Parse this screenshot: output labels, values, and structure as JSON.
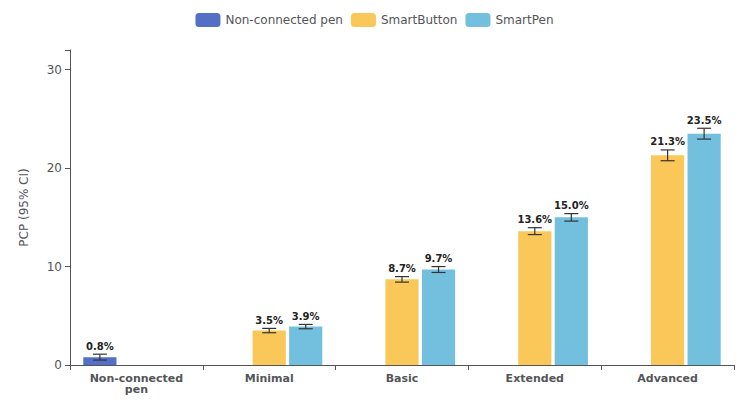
{
  "chart_data": {
    "type": "bar",
    "categories": [
      "Non-connected\npen",
      "Minimal",
      "Basic",
      "Extended",
      "Advanced"
    ],
    "ylabel": "PCP (95% CI)",
    "ylim": [
      0,
      32
    ],
    "yticks": [
      0,
      10,
      20,
      30
    ],
    "grid": false,
    "legend": "top",
    "data_labels": true,
    "series": [
      {
        "name": "Non-connected pen",
        "values": [
          0.8,
          null,
          null,
          null,
          null
        ],
        "errors": [
          0.3,
          null,
          null,
          null,
          null
        ],
        "value_labels": [
          "0.8%",
          null,
          null,
          null,
          null
        ]
      },
      {
        "name": "SmartButton",
        "values": [
          null,
          3.5,
          8.7,
          13.6,
          21.3
        ],
        "errors": [
          null,
          0.22,
          0.28,
          0.35,
          0.55
        ],
        "value_labels": [
          null,
          "3.5%",
          "8.7%",
          "13.6%",
          "21.3%"
        ]
      },
      {
        "name": "SmartPen",
        "values": [
          null,
          3.9,
          9.7,
          15.0,
          23.5
        ],
        "errors": [
          null,
          0.22,
          0.3,
          0.38,
          0.55
        ],
        "value_labels": [
          null,
          "3.9%",
          "9.7%",
          "15.0%",
          "23.5%"
        ]
      }
    ]
  }
}
